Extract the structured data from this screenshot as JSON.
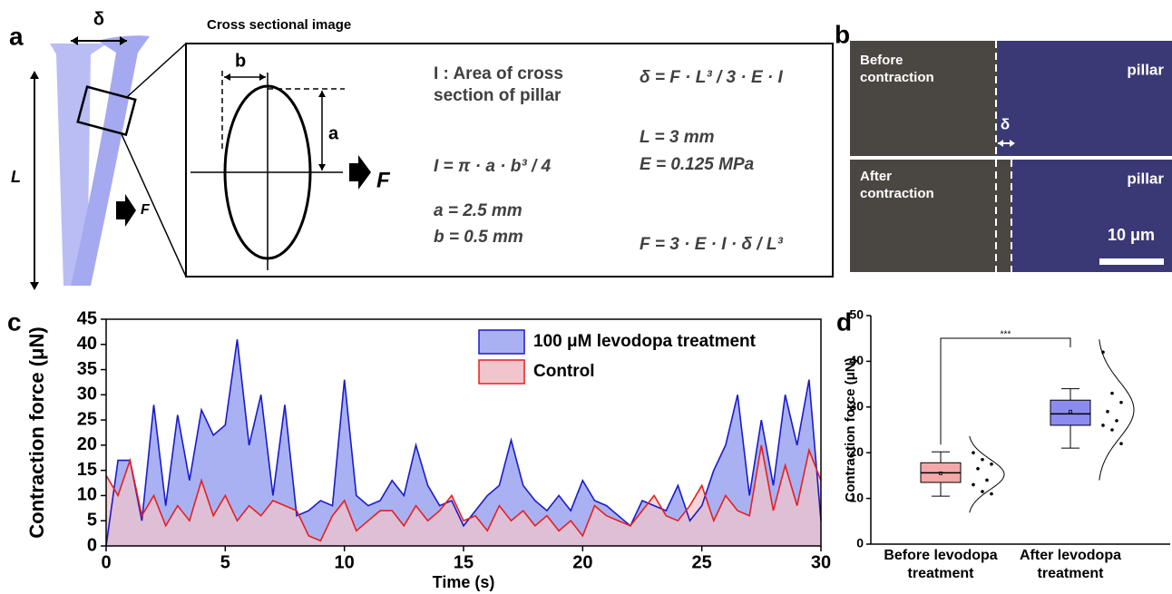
{
  "panel_labels": [
    "a",
    "b",
    "c",
    "d"
  ],
  "panel_a": {
    "delta": "δ",
    "length": "L",
    "force": "F",
    "inset_title": "Cross sectional image",
    "dim_b": "b",
    "dim_a": "a",
    "inset_force": "F",
    "area_def": "I : Area of cross section of pillar",
    "inertia": "I = π · a · b³ / 4",
    "a_value": "a = 2.5 mm",
    "b_value": "b = 0.5 mm",
    "deflection": "δ = F · L³ / 3 · E · I",
    "l_value": "L = 3 mm",
    "e_value": "E = 0.125 MPa",
    "force_eq": "F = 3 · E · I · δ / L³"
  },
  "panel_b": {
    "before": "Before contraction",
    "after": "After contraction",
    "pillar_top": "pillar",
    "pillar_bottom": "pillar",
    "delta": "δ",
    "scale_bar": "10 μm"
  },
  "chart_data": [
    {
      "type": "area",
      "x_label": "Time (s)",
      "y_label": "Contraction force (μN)",
      "x": [
        0,
        0.5,
        1,
        1.5,
        2,
        2.5,
        3,
        3.5,
        4,
        4.5,
        5,
        5.5,
        6,
        6.5,
        7,
        7.5,
        8,
        8.5,
        9,
        9.5,
        10,
        10.5,
        11,
        11.5,
        12,
        12.5,
        13,
        13.5,
        14,
        14.5,
        15,
        15.5,
        16,
        16.5,
        17,
        17.5,
        18,
        18.5,
        19,
        19.5,
        20,
        20.5,
        21,
        21.5,
        22,
        22.5,
        23,
        23.5,
        24,
        24.5,
        25,
        25.5,
        26,
        26.5,
        27,
        27.5,
        28,
        28.5,
        29,
        29.5,
        30
      ],
      "series": [
        {
          "name": "100 μM levodopa treatment",
          "color": "#1a1acc",
          "fill": "#a9b1f2",
          "values": [
            0,
            17,
            17,
            5,
            28,
            8,
            26,
            13,
            27,
            22,
            24,
            41,
            20,
            30,
            10,
            28,
            6,
            7,
            9,
            8,
            33,
            10,
            8,
            9,
            13,
            10,
            20,
            12,
            8,
            9,
            4,
            7,
            10,
            12,
            21,
            12,
            9,
            7,
            10,
            7,
            13,
            9,
            8,
            6,
            4,
            9,
            8,
            7,
            12,
            5,
            8,
            15,
            20,
            30,
            10,
            25,
            12,
            30,
            20,
            33,
            5
          ]
        },
        {
          "name": "Control",
          "color": "#e52020",
          "fill": "#f2c4cc",
          "values": [
            14,
            10,
            17,
            6,
            10,
            4,
            8,
            5,
            13,
            6,
            10,
            5,
            8,
            6,
            9,
            8,
            7,
            2,
            1,
            6,
            9,
            3,
            5,
            7,
            7,
            4,
            8,
            5,
            7,
            10,
            5,
            6,
            3,
            8,
            5,
            7,
            4,
            6,
            3,
            5,
            2,
            8,
            6,
            5,
            4,
            7,
            10,
            6,
            5,
            8,
            12,
            5,
            10,
            7,
            6,
            20,
            7,
            16,
            8,
            19,
            13
          ]
        }
      ],
      "xlim": [
        0,
        30
      ],
      "xticks": [
        0,
        5,
        10,
        15,
        20,
        25,
        30
      ],
      "ylim": [
        0,
        45
      ],
      "yticks": [
        0,
        5,
        10,
        15,
        20,
        25,
        30,
        35,
        40,
        45
      ]
    },
    {
      "type": "box",
      "y_label": "Contraction force (μN)",
      "categories": [
        "Before levodopa treatment",
        "After levodopa treatment"
      ],
      "colors": [
        "#f4a8a8",
        "#8c8cf0"
      ],
      "boxes": [
        {
          "whisker_low": 10.5,
          "q1": 13.5,
          "median": 15.6,
          "q3": 17.8,
          "whisker_high": 20.2,
          "mean": 15.5
        },
        {
          "whisker_low": 21,
          "q1": 26,
          "median": 28.5,
          "q3": 31.5,
          "whisker_high": 34,
          "mean": 29
        }
      ],
      "points": [
        [
          20,
          18.5,
          17.5,
          16.5,
          14,
          13,
          11.5,
          11
        ],
        [
          42,
          33,
          31,
          29,
          27,
          26,
          25,
          22
        ]
      ],
      "significance": "***",
      "ylim": [
        0,
        50
      ],
      "yticks": [
        0,
        10,
        20,
        30,
        40,
        50
      ]
    }
  ]
}
